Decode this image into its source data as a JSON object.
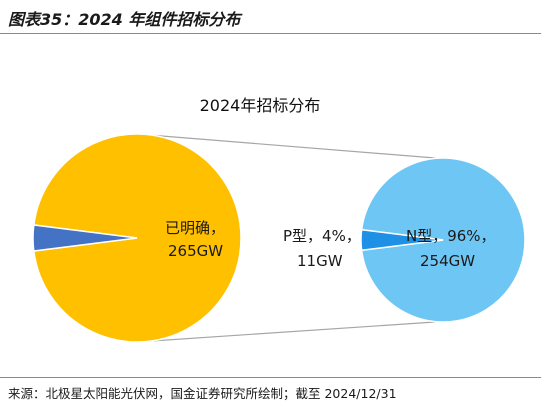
{
  "header": {
    "caption": "图表35：2024 年组件招标分布"
  },
  "footer": {
    "source": "来源：北极星太阳能光伏网，国金证券研究所绘制；截至 2024/12/31"
  },
  "chart_data": {
    "type": "pie",
    "title": "2024年招标分布",
    "primary_pie": {
      "slices": [
        {
          "label_line1": "已明确，",
          "label_line2": "265GW",
          "value": 265,
          "color": "#FFC000"
        },
        {
          "value": 11,
          "color": "#4472C4",
          "exploded_into": "secondary_pie"
        }
      ]
    },
    "secondary_pie": {
      "slices": [
        {
          "label_line1": "P型，4%，",
          "label_line2": "11GW",
          "percent": 4,
          "value": 11,
          "color": "#1E90E6"
        },
        {
          "label_line1": "N型，96%，",
          "label_line2": "254GW",
          "percent": 96,
          "value": 254,
          "color": "#6EC6F5"
        }
      ]
    }
  }
}
